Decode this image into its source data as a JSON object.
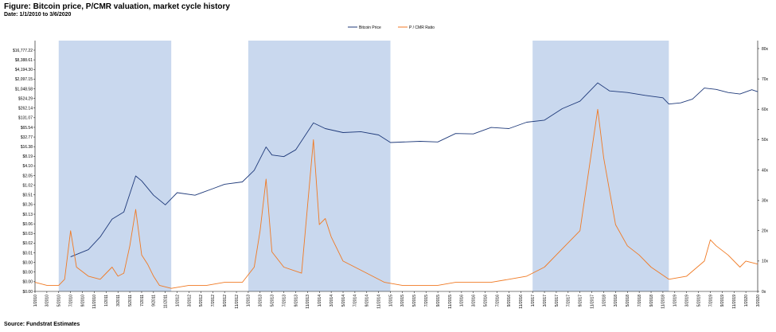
{
  "title": "Figure: Bitcoin price, P/CMR valuation, market cycle history",
  "subtitle": "Date: 1/1/2010 to 3/6/2020",
  "source": "Source: Fundstrat Estimates",
  "colors": {
    "price": "#1f3a7a",
    "ratio": "#f07a24",
    "shade": "#c9d8ee"
  },
  "chart_data": {
    "type": "line",
    "legend": {
      "placement": "top-center",
      "entries": [
        "Bitcoin Price",
        "P / CMR Ratio"
      ]
    },
    "x_ticks": [
      "1/2010",
      "3/2010",
      "5/2010",
      "7/2010",
      "9/2010",
      "11/2010",
      "1/2011",
      "3/2011",
      "5/2011",
      "7/2011",
      "9/2011",
      "11/2011",
      "1/2012",
      "3/2012",
      "5/2012",
      "7/2012",
      "9/2012",
      "11/2012",
      "1/2013",
      "3/2013",
      "5/2013",
      "7/2013",
      "9/2013",
      "11/2013",
      "1/2014",
      "3/2014",
      "5/2014",
      "7/2014",
      "9/2014",
      "11/2014",
      "1/2015",
      "3/2015",
      "5/2015",
      "7/2015",
      "9/2015",
      "11/2015",
      "1/2016",
      "3/2016",
      "5/2016",
      "7/2016",
      "9/2016",
      "11/2016",
      "1/2017",
      "3/2017",
      "5/2017",
      "7/2017",
      "9/2017",
      "11/2017",
      "1/2018",
      "3/2018",
      "5/2018",
      "7/2018",
      "9/2018",
      "11/2018",
      "1/2019",
      "3/2019",
      "5/2019",
      "7/2019",
      "9/2019",
      "11/2019",
      "1/2020",
      "3/2020"
    ],
    "y_left_ticks": [
      "$16,777.22",
      "$8,388.61",
      "$4,194.30",
      "$2,097.15",
      "$1,048.58",
      "$524.29",
      "$262.14",
      "$131.07",
      "$65.54",
      "$32.77",
      "$16.38",
      "$8.19",
      "$4.10",
      "$2.05",
      "$1.02",
      "$0.51",
      "$0.26",
      "$0.13",
      "$0.06",
      "$0.03",
      "$0.02",
      "$0.01",
      "$0.00",
      "$0.00",
      "$0.00",
      "$0.00"
    ],
    "y_right_ticks": [
      "80x",
      "70x",
      "60x",
      "50x",
      "40x",
      "30x",
      "20x",
      "10x",
      "0x"
    ],
    "y_left_scale": "log2",
    "y_right_range": [
      0,
      80
    ],
    "shaded_periods": [
      [
        "5/2010",
        "12/2011"
      ],
      [
        "1/2013",
        "1/2015"
      ],
      [
        "1/2017",
        "12/2018"
      ]
    ],
    "series": [
      {
        "name": "Bitcoin Price",
        "axis": "left",
        "points": [
          [
            "2010-07",
            0.06
          ],
          [
            "2010-10",
            0.1
          ],
          [
            "2010-12",
            0.25
          ],
          [
            "2011-02",
            0.9
          ],
          [
            "2011-04",
            1.5
          ],
          [
            "2011-06",
            20
          ],
          [
            "2011-07",
            14
          ],
          [
            "2011-09",
            5
          ],
          [
            "2011-11",
            2.5
          ],
          [
            "2012-01",
            6
          ],
          [
            "2012-04",
            5
          ],
          [
            "2012-07",
            8
          ],
          [
            "2012-09",
            11
          ],
          [
            "2012-12",
            13
          ],
          [
            "2013-02",
            30
          ],
          [
            "2013-04",
            160
          ],
          [
            "2013-05",
            90
          ],
          [
            "2013-07",
            80
          ],
          [
            "2013-09",
            130
          ],
          [
            "2013-12",
            900
          ],
          [
            "2014-02",
            600
          ],
          [
            "2014-05",
            450
          ],
          [
            "2014-08",
            480
          ],
          [
            "2014-11",
            380
          ],
          [
            "2015-01",
            220
          ],
          [
            "2015-06",
            240
          ],
          [
            "2015-09",
            230
          ],
          [
            "2015-12",
            420
          ],
          [
            "2016-03",
            410
          ],
          [
            "2016-06",
            650
          ],
          [
            "2016-09",
            600
          ],
          [
            "2016-12",
            950
          ],
          [
            "2017-03",
            1100
          ],
          [
            "2017-06",
            2500
          ],
          [
            "2017-09",
            4300
          ],
          [
            "2017-12",
            16000
          ],
          [
            "2018-02",
            9000
          ],
          [
            "2018-05",
            8000
          ],
          [
            "2018-08",
            6500
          ],
          [
            "2018-11",
            5500
          ],
          [
            "2018-12",
            3500
          ],
          [
            "2019-02",
            3800
          ],
          [
            "2019-04",
            5000
          ],
          [
            "2019-06",
            11000
          ],
          [
            "2019-08",
            10000
          ],
          [
            "2019-10",
            8000
          ],
          [
            "2019-12",
            7200
          ],
          [
            "2020-02",
            9800
          ],
          [
            "2020-03",
            8500
          ]
        ]
      },
      {
        "name": "P / CMR Ratio",
        "axis": "right",
        "points": [
          [
            "2010-01",
            3
          ],
          [
            "2010-03",
            2
          ],
          [
            "2010-05",
            2
          ],
          [
            "2010-06",
            4
          ],
          [
            "2010-07",
            20
          ],
          [
            "2010-08",
            8
          ],
          [
            "2010-10",
            5
          ],
          [
            "2010-12",
            4
          ],
          [
            "2011-02",
            8
          ],
          [
            "2011-03",
            5
          ],
          [
            "2011-04",
            6
          ],
          [
            "2011-05",
            15
          ],
          [
            "2011-06",
            27
          ],
          [
            "2011-07",
            12
          ],
          [
            "2011-08",
            9
          ],
          [
            "2011-09",
            5
          ],
          [
            "2011-10",
            2
          ],
          [
            "2011-12",
            1
          ],
          [
            "2012-03",
            2
          ],
          [
            "2012-06",
            2
          ],
          [
            "2012-09",
            3
          ],
          [
            "2012-12",
            3
          ],
          [
            "2013-02",
            8
          ],
          [
            "2013-03",
            20
          ],
          [
            "2013-04",
            37
          ],
          [
            "2013-05",
            13
          ],
          [
            "2013-07",
            8
          ],
          [
            "2013-10",
            6
          ],
          [
            "2013-12",
            50
          ],
          [
            "2014-01",
            22
          ],
          [
            "2014-02",
            24
          ],
          [
            "2014-03",
            18
          ],
          [
            "2014-05",
            10
          ],
          [
            "2014-07",
            8
          ],
          [
            "2014-09",
            6
          ],
          [
            "2014-12",
            3
          ],
          [
            "2015-03",
            2
          ],
          [
            "2015-06",
            2
          ],
          [
            "2015-09",
            2
          ],
          [
            "2015-12",
            3
          ],
          [
            "2016-03",
            3
          ],
          [
            "2016-06",
            3
          ],
          [
            "2016-09",
            4
          ],
          [
            "2016-12",
            5
          ],
          [
            "2017-03",
            8
          ],
          [
            "2017-06",
            14
          ],
          [
            "2017-09",
            20
          ],
          [
            "2017-12",
            60
          ],
          [
            "2018-01",
            44
          ],
          [
            "2018-03",
            22
          ],
          [
            "2018-05",
            15
          ],
          [
            "2018-07",
            12
          ],
          [
            "2018-09",
            8
          ],
          [
            "2018-12",
            4
          ],
          [
            "2019-03",
            5
          ],
          [
            "2019-06",
            10
          ],
          [
            "2019-07",
            17
          ],
          [
            "2019-08",
            15
          ],
          [
            "2019-10",
            12
          ],
          [
            "2019-12",
            8
          ],
          [
            "2020-01",
            10
          ],
          [
            "2020-03",
            9
          ]
        ]
      }
    ]
  }
}
